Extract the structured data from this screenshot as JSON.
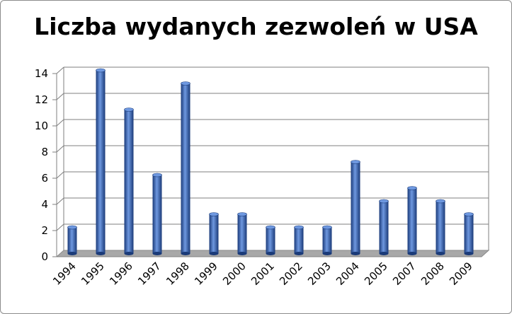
{
  "chart_data": {
    "type": "bar",
    "title": "Liczba wydanych zezwoleń w USA",
    "categories": [
      "1994",
      "1995",
      "1996",
      "1997",
      "1998",
      "1999",
      "2000",
      "2001",
      "2002",
      "2003",
      "2004",
      "2005",
      "2007",
      "2008",
      "2009"
    ],
    "values": [
      2,
      14,
      11,
      6,
      13,
      3,
      3,
      2,
      2,
      2,
      7,
      4,
      5,
      4,
      3
    ],
    "ylim": [
      0,
      14
    ],
    "yticks": [
      0,
      2,
      4,
      6,
      8,
      10,
      12,
      14
    ],
    "grid": true,
    "legend": "none",
    "bar_color": "#2f5fb5",
    "bar_color_dark": "#1a3a78",
    "bar_color_light": "#6e98e0",
    "floor_color": "#a8a8a8"
  }
}
